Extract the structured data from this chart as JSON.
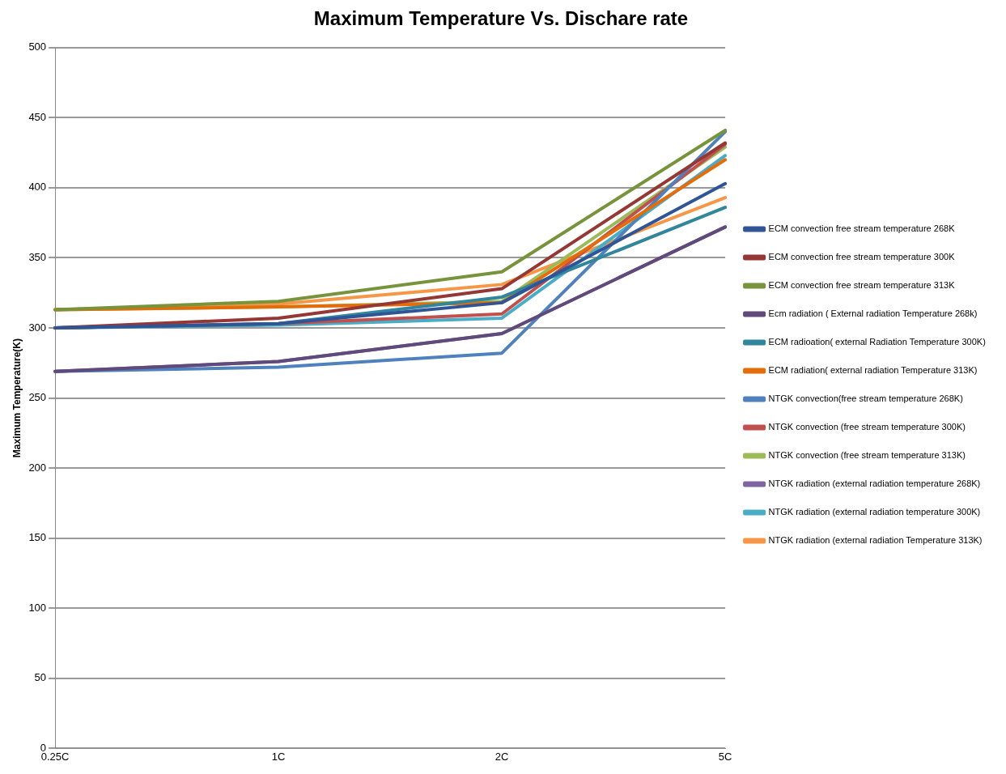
{
  "chart_data": {
    "type": "line",
    "title": "Maximum Temperature Vs. Dischare rate",
    "ylabel": "Maximum Temperature(K)",
    "categories": [
      "0.25C",
      "1C",
      "2C",
      "5C"
    ],
    "ylim": [
      0,
      500
    ],
    "yticks": [
      0,
      50,
      100,
      150,
      200,
      250,
      300,
      350,
      400,
      450,
      500
    ],
    "grid": "y",
    "legend": "right",
    "marker": "none",
    "line_style": "solid",
    "series": [
      {
        "name": "ECM convection free stream temperature 268K",
        "color": "#2f5597",
        "values": [
          300,
          303,
          318,
          403
        ]
      },
      {
        "name": "ECM convection free stream temperature 300K",
        "color": "#953735",
        "values": [
          300,
          307,
          328,
          432
        ]
      },
      {
        "name": "ECM convection free stream temperature 313K",
        "color": "#77933c",
        "values": [
          313,
          319,
          340,
          441
        ]
      },
      {
        "name": "Ecm radiation ( External radiation Temperature 268k)",
        "color": "#604a7b",
        "values": [
          269,
          276,
          296,
          372
        ]
      },
      {
        "name": "ECM radioation( external Radiation Temperature 300K)",
        "color": "#31859c",
        "values": [
          300,
          303,
          322,
          386
        ]
      },
      {
        "name": "ECM radiation( external radiation Temperature 313K)",
        "color": "#e46c0a",
        "values": [
          313,
          315,
          318,
          420
        ]
      },
      {
        "name": "NTGK convection(free stream temperature 268K)",
        "color": "#4f81bd",
        "values": [
          269,
          272,
          282,
          440
        ]
      },
      {
        "name": "NTGK convection (free stream temperature 300K)",
        "color": "#c0504d",
        "values": [
          300,
          303,
          310,
          431
        ]
      },
      {
        "name": "NTGK convection (free stream temperature 313K)",
        "color": "#9bbb59",
        "values": [
          313,
          315,
          319,
          429
        ]
      },
      {
        "name": "NTGK radiation (external radiation temperature 268K)",
        "color": "#8064a2",
        "values": [
          269,
          276,
          296,
          372
        ]
      },
      {
        "name": "NTGK radiation (external radiation temperature 300K)",
        "color": "#4bacc6",
        "values": [
          300,
          302,
          307,
          423
        ]
      },
      {
        "name": "NTGK radiation (external radiation Temperature 313K)",
        "color": "#f79646",
        "values": [
          313,
          317,
          331,
          393
        ]
      }
    ]
  }
}
